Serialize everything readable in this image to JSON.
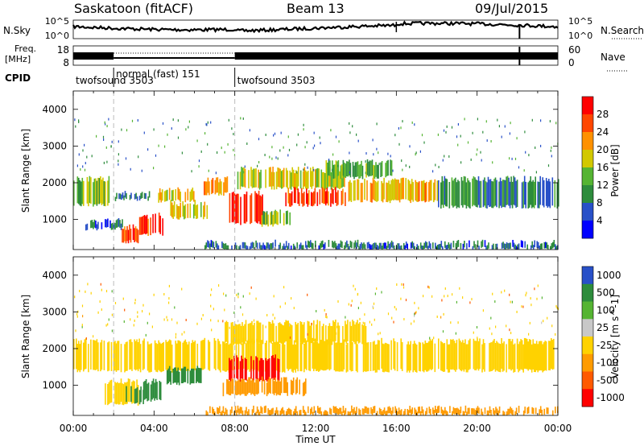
{
  "header": {
    "station": "Saskatoon (fitACF)",
    "beam": "Beam 13",
    "date": "09/Jul/2015"
  },
  "noise_panel": {
    "left_label": "N.Sky",
    "right_label": "N.Search",
    "ticks_left": [
      "10^5",
      "10^0"
    ],
    "ticks_right": [
      "10^5",
      "10^0"
    ]
  },
  "freq_panel": {
    "left_label_line1": "Freq.",
    "left_label_line2": "[MHz]",
    "ticks_left": [
      "18",
      "8"
    ],
    "right_label": "Nave",
    "ticks_right": [
      "60",
      "0"
    ]
  },
  "cpid": {
    "label": "CPID",
    "modes": [
      {
        "name": "twofsound 3503",
        "start_h": 0.0,
        "end_h": 2.0
      },
      {
        "name": "normal (fast) 151",
        "start_h": 2.0,
        "end_h": 8.0
      },
      {
        "name": "twofsound 3503",
        "start_h": 8.0,
        "end_h": 24.0
      }
    ]
  },
  "chart_data": [
    {
      "type": "heatmap",
      "panel": "power",
      "ylabel": "Slant Range [km]",
      "y_ticks": [
        "1000",
        "2000",
        "3000",
        "4000"
      ],
      "ylim": [
        180,
        4500
      ],
      "xlim_hours": [
        0,
        24
      ],
      "colorbar_label": "Power [dB]",
      "colorbar_ticks": [
        "4",
        "8",
        "12",
        "16",
        "20",
        "24",
        "28"
      ],
      "colorbar_range": [
        0,
        30
      ],
      "colors": [
        "#0000ff",
        "#2850c8",
        "#2d8c3c",
        "#55b432",
        "#d2c800",
        "#ff9100",
        "#ff4600",
        "#ff0000"
      ],
      "bands": [
        {
          "t0": 0.0,
          "t1": 1.8,
          "r0": 1400,
          "r1": 2100,
          "val": 14
        },
        {
          "t0": 0.6,
          "t1": 2.5,
          "r0": 750,
          "r1": 950,
          "val": 6
        },
        {
          "t0": 2.0,
          "t1": 3.8,
          "r0": 1550,
          "r1": 1700,
          "val": 8
        },
        {
          "t0": 2.4,
          "t1": 3.2,
          "r0": 400,
          "r1": 800,
          "val": 24
        },
        {
          "t0": 3.2,
          "t1": 4.4,
          "r0": 600,
          "r1": 1100,
          "val": 26
        },
        {
          "t0": 4.2,
          "t1": 6.0,
          "r0": 1500,
          "r1": 1800,
          "val": 18
        },
        {
          "t0": 4.8,
          "t1": 6.6,
          "r0": 1050,
          "r1": 1450,
          "val": 17
        },
        {
          "t0": 6.4,
          "t1": 7.6,
          "r0": 1700,
          "r1": 2100,
          "val": 20
        },
        {
          "t0": 7.6,
          "t1": 9.4,
          "r0": 900,
          "r1": 1700,
          "val": 27
        },
        {
          "t0": 9.2,
          "t1": 10.8,
          "r0": 850,
          "r1": 1200,
          "val": 14
        },
        {
          "t0": 8.0,
          "t1": 13.5,
          "r0": 1850,
          "r1": 2350,
          "val": 16
        },
        {
          "t0": 10.5,
          "t1": 13.5,
          "r0": 1400,
          "r1": 1800,
          "val": 25
        },
        {
          "t0": 13.5,
          "t1": 18.0,
          "r0": 1500,
          "r1": 2050,
          "val": 19
        },
        {
          "t0": 12.5,
          "t1": 15.8,
          "r0": 2150,
          "r1": 2550,
          "val": 12
        },
        {
          "t0": 18.0,
          "t1": 24.0,
          "r0": 1350,
          "r1": 2100,
          "val": 9
        },
        {
          "t0": 6.5,
          "t1": 24.0,
          "r0": 200,
          "r1": 360,
          "val": 7
        }
      ]
    },
    {
      "type": "heatmap",
      "panel": "velocity",
      "ylabel": "Slant Range [km]",
      "y_ticks": [
        "1000",
        "2000",
        "3000",
        "4000"
      ],
      "ylim": [
        180,
        4500
      ],
      "xlim_hours": [
        0,
        24
      ],
      "xlabel": "Time UT",
      "x_ticks": [
        "00:00",
        "04:00",
        "08:00",
        "12:00",
        "16:00",
        "20:00",
        "00:00"
      ],
      "colorbar_label": "Velocity [m s^-1]",
      "colorbar_ticks": [
        "1000",
        "500",
        "100",
        "25",
        "-25",
        "-100",
        "-500",
        "-1000"
      ],
      "colors": [
        "#2850c8",
        "#2d8c3c",
        "#55b432",
        "#c8c8c8",
        "#ffd200",
        "#ff9b00",
        "#ff5a00",
        "#ff0000"
      ],
      "bands": [
        {
          "t0": 0.0,
          "t1": 24.0,
          "r0": 1400,
          "r1": 2200,
          "val": 0
        },
        {
          "t0": 7.5,
          "t1": 14.5,
          "r0": 2150,
          "r1": 2700,
          "val": 0
        },
        {
          "t0": 1.5,
          "t1": 3.3,
          "r0": 500,
          "r1": 1100,
          "val": 0
        },
        {
          "t0": 2.6,
          "t1": 3.5,
          "r0": 500,
          "r1": 900,
          "val": 300
        },
        {
          "t0": 3.4,
          "t1": 4.4,
          "r0": 600,
          "r1": 1100,
          "val": 600
        },
        {
          "t0": 4.5,
          "t1": 6.3,
          "r0": 1050,
          "r1": 1450,
          "val": 300
        },
        {
          "t0": 7.7,
          "t1": 10.2,
          "r0": 1150,
          "r1": 1750,
          "val": -600
        },
        {
          "t0": 7.4,
          "t1": 11.5,
          "r0": 750,
          "r1": 1150,
          "val": -60
        },
        {
          "t0": 6.5,
          "t1": 24.0,
          "r0": 200,
          "r1": 360,
          "val": -40
        }
      ]
    }
  ]
}
